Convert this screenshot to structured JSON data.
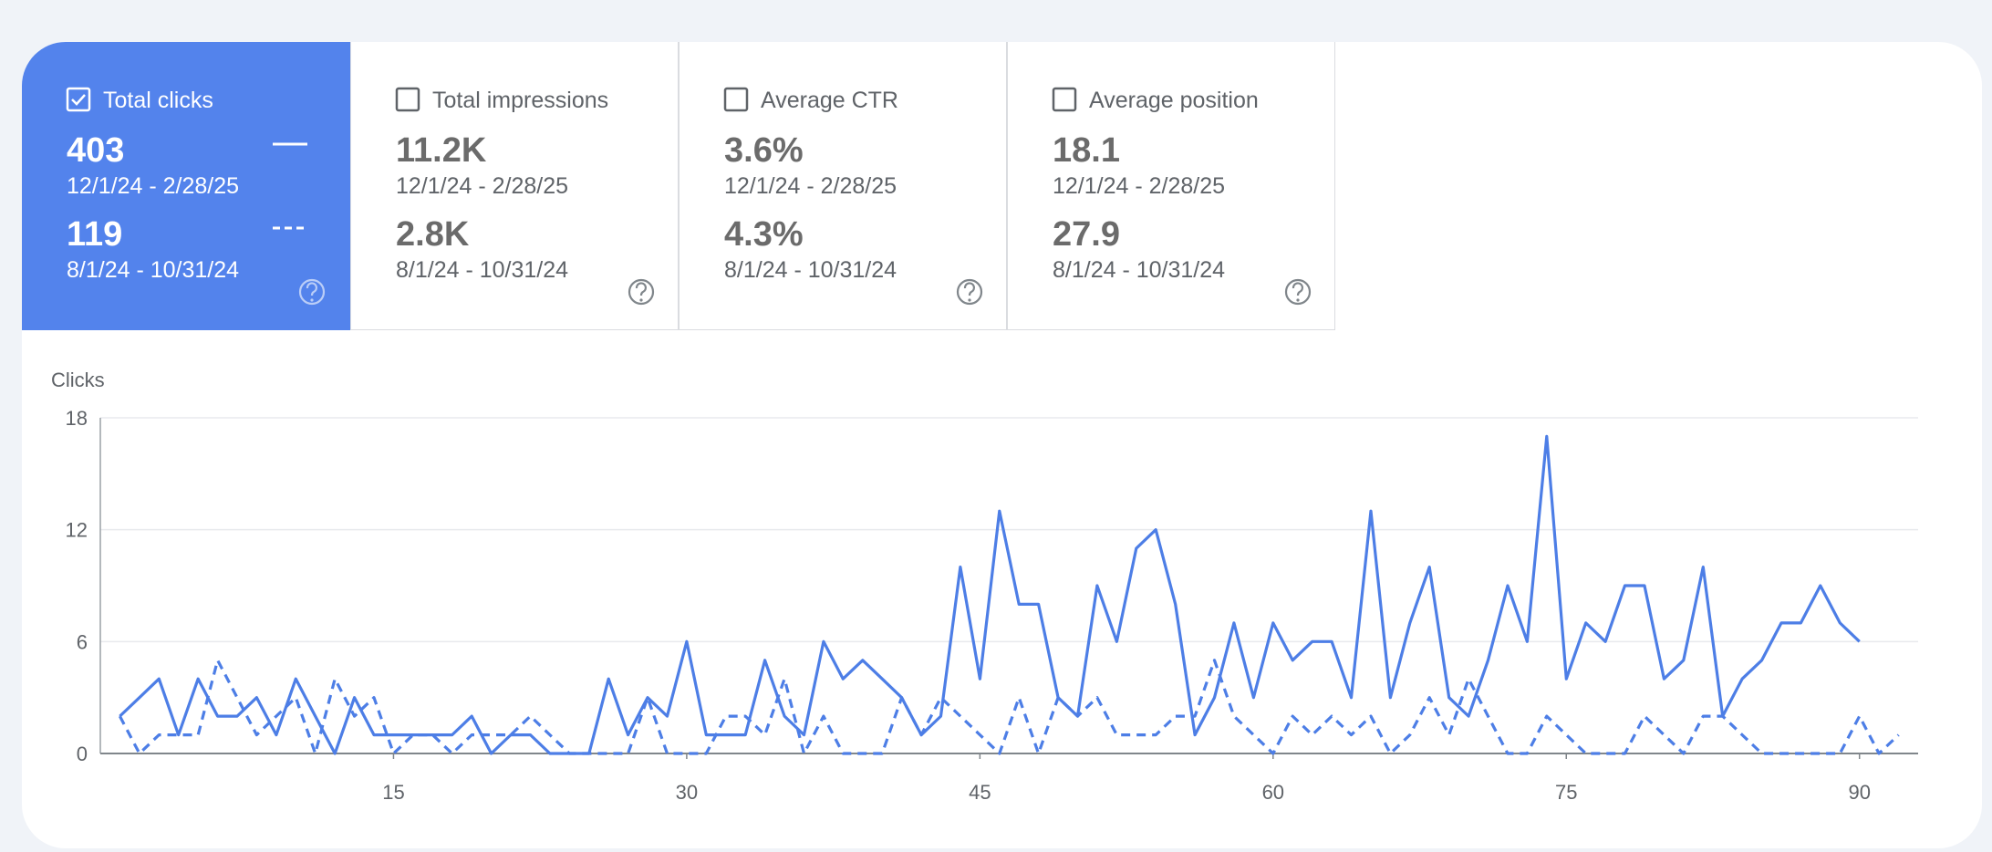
{
  "tiles": [
    {
      "label": "Total clicks",
      "active": true,
      "current": {
        "value": 403,
        "range": "12/1/24 - 2/28/25"
      },
      "previous": {
        "value": 119,
        "range": "8/1/24 - 10/31/24"
      }
    },
    {
      "label": "Total impressions",
      "active": false,
      "current": {
        "value": "11.2K",
        "range": "12/1/24 - 2/28/25"
      },
      "previous": {
        "value": "2.8K",
        "range": "8/1/24 - 10/31/24"
      }
    },
    {
      "label": "Average CTR",
      "active": false,
      "current": {
        "value": "3.6%",
        "range": "12/1/24 - 2/28/25"
      },
      "previous": {
        "value": "4.3%",
        "range": "8/1/24 - 10/31/24"
      }
    },
    {
      "label": "Average position",
      "active": false,
      "current": {
        "value": 18.1,
        "range": "12/1/24 - 2/28/25"
      },
      "previous": {
        "value": 27.9,
        "range": "8/1/24 - 10/31/24"
      }
    }
  ],
  "chart_data": {
    "type": "line",
    "y_label": "Clicks",
    "x": [
      1,
      2,
      3,
      4,
      5,
      6,
      7,
      8,
      9,
      10,
      11,
      12,
      13,
      14,
      15,
      16,
      17,
      18,
      19,
      20,
      21,
      22,
      23,
      24,
      25,
      26,
      27,
      28,
      29,
      30,
      31,
      32,
      33,
      34,
      35,
      36,
      37,
      38,
      39,
      40,
      41,
      42,
      43,
      44,
      45,
      46,
      47,
      48,
      49,
      50,
      51,
      52,
      53,
      54,
      55,
      56,
      57,
      58,
      59,
      60,
      61,
      62,
      63,
      64,
      65,
      66,
      67,
      68,
      69,
      70,
      71,
      72,
      73,
      74,
      75,
      76,
      77,
      78,
      79,
      80,
      81,
      82,
      83,
      84,
      85,
      86,
      87,
      88,
      89,
      90,
      91,
      92
    ],
    "series": [
      {
        "style": "solid",
        "color": "#4d7ee6",
        "values": [
          2,
          3,
          4,
          1,
          4,
          2,
          2,
          3,
          1,
          4,
          2,
          0,
          3,
          1,
          1,
          1,
          1,
          1,
          2,
          0,
          1,
          1,
          0,
          0,
          0,
          4,
          1,
          3,
          2,
          6,
          1,
          1,
          1,
          5,
          2,
          1,
          6,
          4,
          5,
          4,
          3,
          1,
          2,
          10,
          4,
          13,
          8,
          8,
          3,
          2,
          9,
          6,
          11,
          12,
          8,
          1,
          3,
          7,
          3,
          7,
          5,
          6,
          6,
          3,
          13,
          3,
          7,
          10,
          3,
          2,
          5,
          9,
          6,
          17,
          4,
          7,
          6,
          9,
          9,
          4,
          5,
          10,
          2,
          4,
          5,
          7,
          7,
          9,
          7,
          6,
          null,
          null
        ]
      },
      {
        "style": "dashed",
        "color": "#4d7ee6",
        "values": [
          2,
          0,
          1,
          1,
          1,
          5,
          3,
          1,
          2,
          3,
          0,
          4,
          2,
          3,
          0,
          1,
          1,
          0,
          1,
          1,
          1,
          2,
          1,
          0,
          0,
          0,
          0,
          3,
          0,
          0,
          0,
          2,
          2,
          1,
          4,
          0,
          2,
          0,
          0,
          0,
          3,
          1,
          3,
          2,
          1,
          0,
          3,
          0,
          3,
          2,
          3,
          1,
          1,
          1,
          2,
          2,
          5,
          2,
          1,
          0,
          2,
          1,
          2,
          1,
          2,
          0,
          1,
          3,
          1,
          4,
          2,
          0,
          0,
          2,
          1,
          0,
          0,
          0,
          2,
          1,
          0,
          2,
          2,
          1,
          0,
          0,
          0,
          0,
          0,
          2,
          0,
          1
        ]
      }
    ],
    "xlim": [
      0,
      93
    ],
    "ylim": [
      0,
      18
    ],
    "xticks": [
      15,
      30,
      45,
      60,
      75,
      90
    ],
    "yticks": [
      0,
      6,
      12,
      18
    ],
    "grid": true
  }
}
